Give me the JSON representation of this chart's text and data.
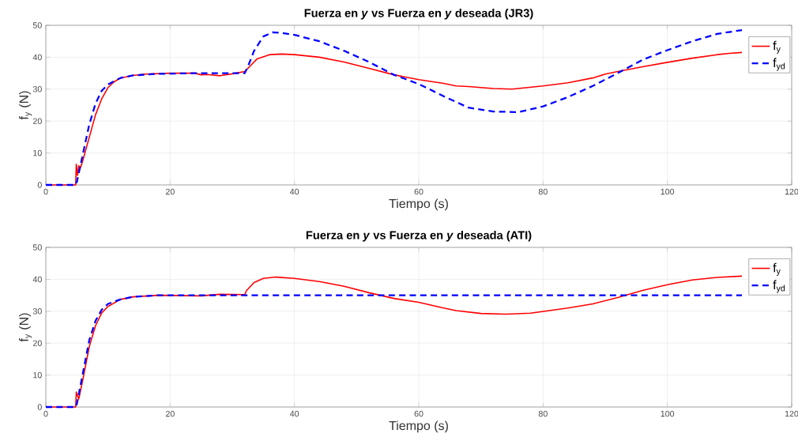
{
  "chart_data": [
    {
      "type": "line",
      "title": "Fuerza en *y* vs Fuerza en *y* deseada (JR3)",
      "xlabel": "Tiempo (s)",
      "ylabel": "f$_{y}$ (N)",
      "xlim": [
        0,
        120
      ],
      "ylim": [
        0,
        50
      ],
      "xticks": [
        0,
        20,
        40,
        60,
        80,
        100,
        120
      ],
      "yticks": [
        0,
        10,
        20,
        30,
        40,
        50
      ],
      "grid": true,
      "legend": "top right",
      "series": [
        {
          "name": "f$_{y}$",
          "color": "#ff0000",
          "line_style": "solid",
          "x": [
            0,
            4.8,
            4.9,
            5.1,
            5.3,
            5.6,
            6,
            7,
            8,
            9,
            10,
            11,
            12,
            14,
            16,
            20,
            24,
            25,
            26,
            28,
            30,
            32,
            33,
            34,
            36,
            38,
            40,
            44,
            48,
            52,
            56,
            60,
            64,
            66,
            68,
            72,
            75,
            80,
            84,
            88,
            90,
            92,
            96,
            100,
            104,
            108,
            110,
            112
          ],
          "values": [
            0,
            0,
            6.5,
            3,
            6,
            5.5,
            8,
            15,
            22,
            27,
            30.5,
            32.3,
            33.5,
            34.3,
            34.7,
            35,
            35,
            34.5,
            34.6,
            34.2,
            34.8,
            35.5,
            37.5,
            39.5,
            40.8,
            41,
            40.8,
            40,
            38.5,
            36.5,
            34.5,
            33,
            31.8,
            31,
            30.8,
            30.2,
            30,
            31,
            32,
            33.5,
            34.7,
            35.5,
            37,
            38.4,
            39.7,
            40.8,
            41.2,
            41.5
          ]
        },
        {
          "name": "f$_{yd}$",
          "color": "#0000ff",
          "line_style": "dashed",
          "x": [
            0,
            4.8,
            5,
            6,
            7,
            8,
            9,
            10,
            12,
            14,
            18,
            24,
            32,
            32.5,
            33.5,
            35,
            36.5,
            38,
            40,
            44,
            48,
            52,
            56,
            60,
            64,
            68,
            72,
            76,
            80,
            84,
            88,
            92,
            96,
            100,
            104,
            108,
            112
          ],
          "values": [
            0,
            0,
            1,
            10,
            19,
            25.5,
            29.5,
            31.5,
            33.5,
            34.3,
            34.8,
            35,
            35,
            37,
            42,
            46.5,
            47.8,
            47.6,
            47,
            45,
            42,
            38.5,
            34.5,
            31.6,
            27.8,
            24.2,
            23,
            22.8,
            24.6,
            27.5,
            31,
            35,
            39.2,
            42.2,
            45,
            47.3,
            48.5
          ]
        }
      ]
    },
    {
      "type": "line",
      "title": "Fuerza en *y* vs Fuerza en *y* deseada (ATI)",
      "xlabel": "Tiempo (s)",
      "ylabel": "f$_{y}$ (N)",
      "xlim": [
        0,
        120
      ],
      "ylim": [
        0,
        50
      ],
      "xticks": [
        0,
        20,
        40,
        60,
        80,
        100,
        120
      ],
      "yticks": [
        0,
        10,
        20,
        30,
        40,
        50
      ],
      "grid": true,
      "legend": "top right",
      "series": [
        {
          "name": "f$_{y}$",
          "color": "#ff0000",
          "line_style": "solid",
          "x": [
            0,
            4.8,
            4.9,
            5.3,
            6,
            7,
            8,
            9,
            10,
            12,
            14,
            18,
            25,
            28,
            32,
            32.3,
            33.5,
            35,
            37,
            40,
            44,
            48,
            52,
            56,
            60,
            64,
            66,
            70,
            74,
            78,
            81,
            84,
            88,
            92,
            96,
            100,
            104,
            108,
            112
          ],
          "values": [
            0,
            0,
            4.7,
            2.5,
            9,
            19,
            25.5,
            29.5,
            31.5,
            33.7,
            34.5,
            35,
            34.8,
            35.3,
            35.2,
            36.5,
            39,
            40.3,
            40.7,
            40.3,
            39.3,
            37.8,
            35.8,
            34,
            32.8,
            31,
            30.2,
            29.3,
            29.1,
            29.4,
            30.2,
            31,
            32.3,
            34.3,
            36.5,
            38.3,
            39.8,
            40.6,
            41
          ]
        },
        {
          "name": "f$_{yd}$",
          "color": "#0000ff",
          "line_style": "dashed",
          "x": [
            0,
            4.8,
            5,
            6,
            7,
            8,
            9,
            10,
            12,
            14,
            18,
            112
          ],
          "values": [
            0,
            0,
            1,
            11,
            21,
            27,
            30.5,
            32.3,
            33.7,
            34.5,
            35,
            35
          ]
        }
      ]
    }
  ]
}
